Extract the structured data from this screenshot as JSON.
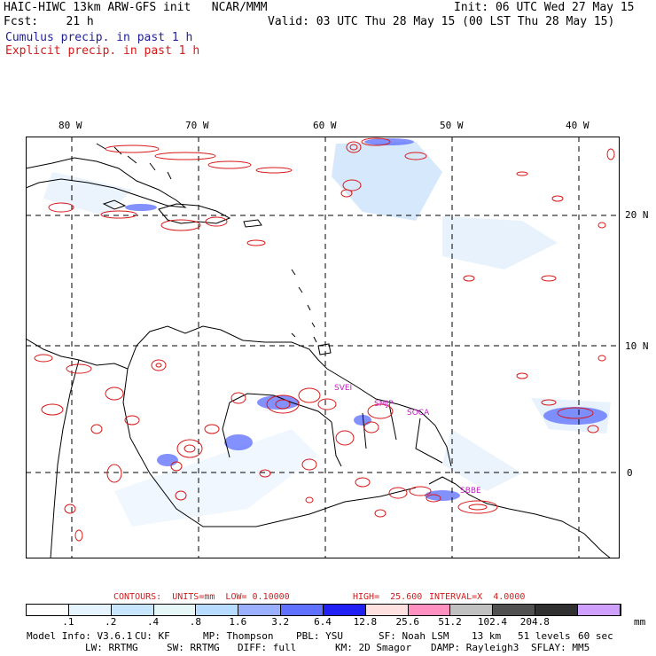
{
  "header": {
    "title": "HAIC-HIWC 13km ARW-GFS init   NCAR/MMM",
    "init": "Init: 06 UTC Wed 27 May 15",
    "fcst": "Fcst:    21 h",
    "valid": "Valid: 03 UTC Thu 28 May 15 (00 LST Thu 28 May 15)",
    "legend_cumulus": "Cumulus precip. in past 1 h",
    "legend_explicit": "Explicit precip. in past 1 h"
  },
  "map": {
    "lon_labels": [
      "80 W",
      "70 W",
      "60 W",
      "50 W",
      "40 W"
    ],
    "lat_labels": [
      "20 N",
      "10 N",
      "0"
    ],
    "stations": [
      "SVEI",
      "SMJP",
      "SOCA",
      "SBBE"
    ],
    "colors": {
      "cumulus": "#1f1f9a",
      "explicit": "#d81818",
      "station": "#c020c0",
      "coast": "#000000"
    }
  },
  "contours": {
    "label": "CONTOURS:  UNITS=mm  LOW= 0.10000",
    "high": "HIGH=  25.600",
    "interval": "INTERVAL=X  4.0000"
  },
  "scale": {
    "colors": [
      "#ffffff",
      "#e6f4ff",
      "#c8e6fb",
      "#e6f7f7",
      "#b8dcff",
      "#9ab0ff",
      "#6070ff",
      "#2020f4",
      "#ffe0e0",
      "#ff90c0",
      "#c0c0c0",
      "#505050",
      "#303030",
      "#d0a0ff"
    ],
    "labels": [
      ".1",
      ".2",
      ".4",
      ".8",
      "1.6",
      "3.2",
      "6.4",
      "12.8",
      "25.6",
      "51.2",
      "102.4",
      "204.8"
    ],
    "unit": "mm"
  },
  "model_info": {
    "line1": [
      "Model Info: V3.6.1",
      "CU: KF",
      "MP: Thompson",
      "PBL: YSU",
      "SF: Noah LSM",
      "13 km",
      "51 levels",
      "60 sec"
    ],
    "line2": [
      "LW: RRTMG",
      "SW: RRTMG",
      "DIFF: full",
      "KM: 2D Smagor",
      "DAMP: Rayleigh3",
      "SFLAY: MM5"
    ]
  }
}
